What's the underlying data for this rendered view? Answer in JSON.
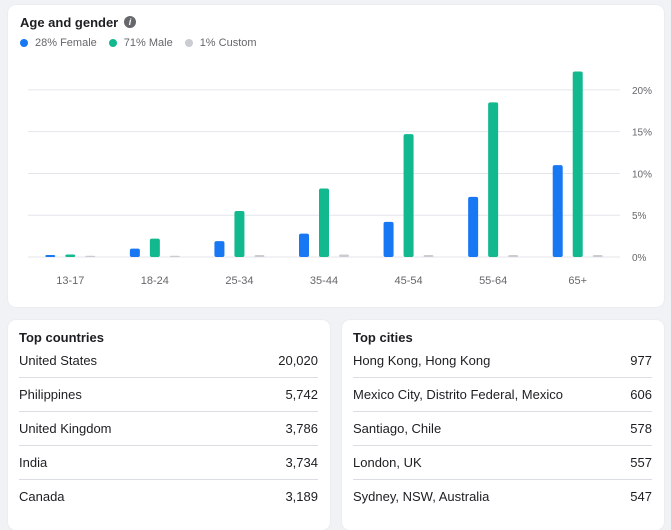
{
  "age_gender": {
    "title": "Age and gender",
    "info_icon": "info-icon",
    "legend": [
      {
        "label": "28% Female",
        "color": "#1877f2"
      },
      {
        "label": "71% Male",
        "color": "#12b88e"
      },
      {
        "label": "1% Custom",
        "color": "#c9ccd1"
      }
    ]
  },
  "chart_data": {
    "type": "bar",
    "categories": [
      "13-17",
      "18-24",
      "25-34",
      "35-44",
      "45-54",
      "55-64",
      "65+"
    ],
    "series": [
      {
        "name": "28% Female",
        "color": "#1877f2",
        "values": [
          0.2,
          1.0,
          1.9,
          2.8,
          4.2,
          7.2,
          11.0
        ]
      },
      {
        "name": "71% Male",
        "color": "#12b88e",
        "values": [
          0.3,
          2.2,
          5.5,
          8.2,
          14.7,
          18.5,
          22.2
        ]
      },
      {
        "name": "1% Custom",
        "color": "#c9ccd1",
        "values": [
          0.0,
          0.0,
          0.1,
          0.3,
          0.05,
          0.05,
          0.05
        ]
      }
    ],
    "yticks": [
      "0%",
      "5%",
      "10%",
      "15%",
      "20%"
    ],
    "ytick_values": [
      0,
      5,
      10,
      15,
      20
    ],
    "ylim": [
      0,
      22.5
    ],
    "grid": true
  },
  "top_countries": {
    "title": "Top countries",
    "rows": [
      {
        "name": "United States",
        "value": "20,020"
      },
      {
        "name": "Philippines",
        "value": "5,742"
      },
      {
        "name": "United Kingdom",
        "value": "3,786"
      },
      {
        "name": "India",
        "value": "3,734"
      },
      {
        "name": "Canada",
        "value": "3,189"
      }
    ]
  },
  "top_cities": {
    "title": "Top cities",
    "rows": [
      {
        "name": "Hong Kong, Hong Kong",
        "value": "977"
      },
      {
        "name": "Mexico City, Distrito Federal, Mexico",
        "value": "606"
      },
      {
        "name": "Santiago, Chile",
        "value": "578"
      },
      {
        "name": "London, UK",
        "value": "557"
      },
      {
        "name": "Sydney, NSW, Australia",
        "value": "547"
      }
    ]
  }
}
